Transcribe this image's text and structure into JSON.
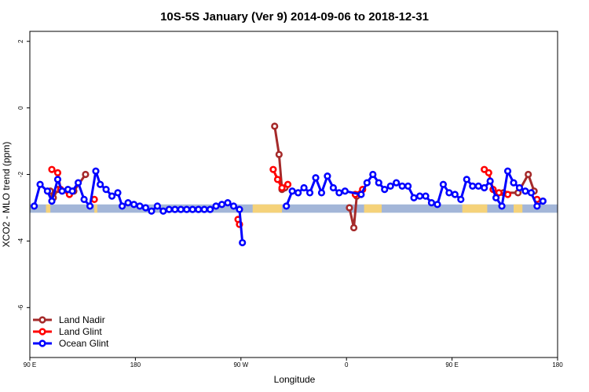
{
  "chart_data": {
    "type": "line",
    "title": "10S-5S January (Ver 9)   2014-09-06 to 2018-12-31",
    "xlabel": "Longitude",
    "ylabel": "XCO2 - MLO trend (ppm)",
    "xlim": [
      90,
      450
    ],
    "ylim": [
      -7.5,
      2.3
    ],
    "x_ticks": [
      {
        "value": 90,
        "label": "90 E"
      },
      {
        "value": 162,
        "label": "180"
      },
      {
        "value": 234,
        "label": "90 W"
      },
      {
        "value": 306,
        "label": "0"
      },
      {
        "value": 378,
        "label": "90 E"
      },
      {
        "value": 450,
        "label": "180"
      }
    ],
    "y_ticks": [
      {
        "value": 2,
        "label": "2"
      },
      {
        "value": 0,
        "label": "0"
      },
      {
        "value": -2,
        "label": "-2"
      },
      {
        "value": -4,
        "label": "-4"
      },
      {
        "value": -6,
        "label": "-6"
      }
    ],
    "legend_position": "bottom-left",
    "colors": {
      "land_band": "#f5d27a",
      "ocean_band": "#a3b6d8"
    },
    "band_y": [
      -3.15,
      -2.9
    ],
    "land_segments": [
      [
        101,
        104
      ],
      [
        134,
        136
      ],
      [
        242,
        262
      ],
      [
        318,
        330
      ],
      [
        385,
        402
      ],
      [
        420,
        426
      ]
    ],
    "series": [
      {
        "name": "Land Nadir",
        "color": "#a52a2a",
        "points": [
          [
            104,
            -2.5
          ],
          [
            106,
            -2.7
          ],
          [
            109,
            -2.45
          ],
          [
            120,
            -2.5
          ],
          [
            128,
            -2.0
          ],
          [
            257,
            -0.55
          ],
          [
            260,
            -1.4
          ],
          [
            262,
            -2.45
          ],
          [
            264,
            -2.4
          ],
          [
            308,
            -3.0
          ],
          [
            311,
            -3.6
          ],
          [
            313,
            -2.65
          ],
          [
            413,
            -2.55
          ],
          [
            423,
            -2.55
          ],
          [
            430,
            -2.0
          ],
          [
            434,
            -2.5
          ]
        ]
      },
      {
        "name": "Land Glint",
        "color": "#ff0000",
        "points": [
          [
            105,
            -1.85
          ],
          [
            109,
            -1.95
          ],
          [
            111,
            -2.45
          ],
          [
            117,
            -2.6
          ],
          [
            134,
            -2.75
          ],
          [
            232,
            -3.35
          ],
          [
            233,
            -3.5
          ],
          [
            256,
            -1.85
          ],
          [
            259,
            -2.15
          ],
          [
            262,
            -2.4
          ],
          [
            266,
            -2.3
          ],
          [
            312,
            -2.6
          ],
          [
            317,
            -2.45
          ],
          [
            400,
            -1.85
          ],
          [
            403,
            -1.95
          ],
          [
            406,
            -2.45
          ],
          [
            410,
            -2.55
          ],
          [
            416,
            -2.6
          ],
          [
            436,
            -2.75
          ]
        ]
      },
      {
        "name": "Ocean Glint",
        "color": "#0000ff",
        "points": [
          [
            93,
            -2.95
          ],
          [
            97,
            -2.3
          ],
          [
            102,
            -2.5
          ],
          [
            105,
            -2.8
          ],
          [
            109,
            -2.15
          ],
          [
            112,
            -2.5
          ],
          [
            116,
            -2.45
          ],
          [
            119,
            -2.5
          ],
          [
            123,
            -2.25
          ],
          [
            127,
            -2.75
          ],
          [
            131,
            -2.95
          ],
          [
            135,
            -1.9
          ],
          [
            138,
            -2.3
          ],
          [
            142,
            -2.45
          ],
          [
            146,
            -2.65
          ],
          [
            150,
            -2.55
          ],
          [
            153,
            -2.95
          ],
          [
            157,
            -2.85
          ],
          [
            161,
            -2.9
          ],
          [
            165,
            -2.95
          ],
          [
            169,
            -3.0
          ],
          [
            173,
            -3.1
          ],
          [
            177,
            -2.95
          ],
          [
            181,
            -3.1
          ],
          [
            185,
            -3.05
          ],
          [
            189,
            -3.05
          ],
          [
            193,
            -3.05
          ],
          [
            197,
            -3.05
          ],
          [
            201,
            -3.05
          ],
          [
            205,
            -3.05
          ],
          [
            209,
            -3.05
          ],
          [
            213,
            -3.05
          ],
          [
            217,
            -2.95
          ],
          [
            221,
            -2.9
          ],
          [
            225,
            -2.85
          ],
          [
            229,
            -2.95
          ],
          [
            233,
            -3.05
          ],
          [
            235,
            -4.05
          ],
          [
            265,
            -2.95
          ],
          [
            269,
            -2.5
          ],
          [
            273,
            -2.55
          ],
          [
            277,
            -2.4
          ],
          [
            281,
            -2.55
          ],
          [
            285,
            -2.1
          ],
          [
            289,
            -2.55
          ],
          [
            293,
            -2.05
          ],
          [
            297,
            -2.4
          ],
          [
            301,
            -2.55
          ],
          [
            305,
            -2.5
          ],
          [
            316,
            -2.6
          ],
          [
            320,
            -2.25
          ],
          [
            324,
            -2.0
          ],
          [
            328,
            -2.25
          ],
          [
            332,
            -2.45
          ],
          [
            336,
            -2.35
          ],
          [
            340,
            -2.25
          ],
          [
            344,
            -2.35
          ],
          [
            348,
            -2.35
          ],
          [
            352,
            -2.7
          ],
          [
            356,
            -2.65
          ],
          [
            360,
            -2.65
          ],
          [
            364,
            -2.85
          ],
          [
            368,
            -2.9
          ],
          [
            372,
            -2.3
          ],
          [
            376,
            -2.55
          ],
          [
            380,
            -2.6
          ],
          [
            384,
            -2.75
          ],
          [
            388,
            -2.15
          ],
          [
            392,
            -2.35
          ],
          [
            396,
            -2.35
          ],
          [
            400,
            -2.4
          ],
          [
            404,
            -2.2
          ],
          [
            408,
            -2.7
          ],
          [
            412,
            -2.95
          ],
          [
            416,
            -1.9
          ],
          [
            420,
            -2.25
          ],
          [
            424,
            -2.4
          ],
          [
            428,
            -2.5
          ],
          [
            432,
            -2.55
          ],
          [
            436,
            -2.95
          ],
          [
            440,
            -2.8
          ]
        ]
      }
    ]
  }
}
